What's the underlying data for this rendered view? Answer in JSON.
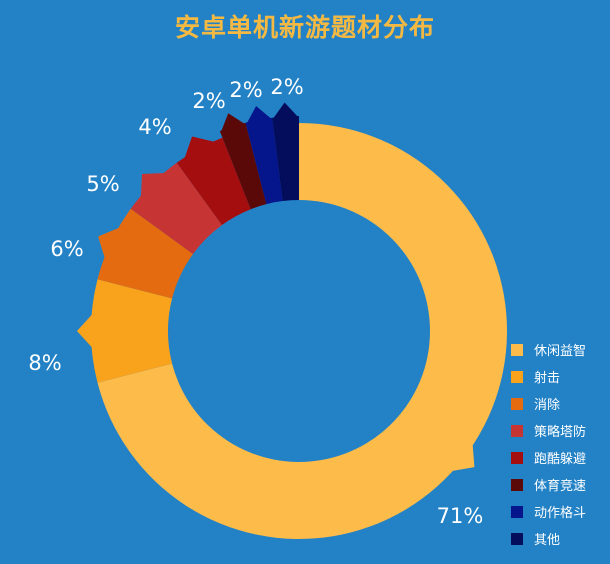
{
  "chart_data": {
    "type": "pie",
    "title": "安卓单机新游题材分布",
    "categories": [
      "休闲益智",
      "射击",
      "消除",
      "策略塔防",
      "跑酷躲避",
      "体育竞速",
      "动作格斗",
      "其他"
    ],
    "values": [
      71,
      8,
      6,
      5,
      4,
      2,
      2,
      2
    ],
    "labels": [
      "71%",
      "8%",
      "6%",
      "5%",
      "4%",
      "2%",
      "2%",
      "2%"
    ],
    "colors": [
      "#fdbb4a",
      "#f9a31d",
      "#e46b10",
      "#c73434",
      "#a50e0e",
      "#5b0808",
      "#05158c",
      "#030d5c"
    ],
    "legend_position": "right-bottom",
    "donut": true
  }
}
